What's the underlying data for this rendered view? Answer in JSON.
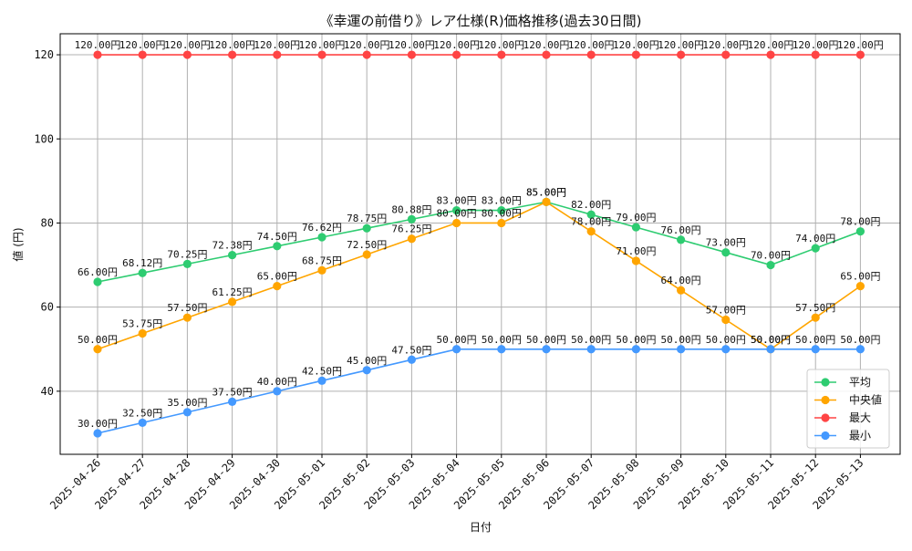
{
  "chart_data": {
    "type": "line",
    "title": "《幸運の前借り》レア仕様(R)価格推移(過去30日間)",
    "xlabel": "日付",
    "ylabel": "値 (円)",
    "ylim": [
      25,
      125
    ],
    "yticks": [
      40,
      60,
      80,
      100,
      120
    ],
    "grid": true,
    "legend_position": "lower-right",
    "categories": [
      "2025-04-26",
      "2025-04-27",
      "2025-04-28",
      "2025-04-29",
      "2025-04-30",
      "2025-05-01",
      "2025-05-02",
      "2025-05-03",
      "2025-05-04",
      "2025-05-05",
      "2025-05-06",
      "2025-05-07",
      "2025-05-08",
      "2025-05-09",
      "2025-05-10",
      "2025-05-11",
      "2025-05-12",
      "2025-05-13"
    ],
    "series": [
      {
        "name": "平均",
        "color": "#2ecc71",
        "values": [
          66.0,
          68.12,
          70.25,
          72.38,
          74.5,
          76.62,
          78.75,
          80.88,
          83.0,
          83.0,
          85.0,
          82.0,
          79.0,
          76.0,
          73.0,
          70.0,
          74.0,
          78.0
        ],
        "labels": [
          "66.00円",
          "68.12円",
          "70.25円",
          "72.38円",
          "74.50円",
          "76.62円",
          "78.75円",
          "80.88円",
          "83.00円",
          "83.00円",
          "85.00円",
          "82.00円",
          "79.00円",
          "76.00円",
          "73.00円",
          "70.00円",
          "74.00円",
          "78.00円"
        ]
      },
      {
        "name": "中央値",
        "color": "#ffa500",
        "values": [
          50.0,
          53.75,
          57.5,
          61.25,
          65.0,
          68.75,
          72.5,
          76.25,
          80.0,
          80.0,
          85.0,
          78.0,
          71.0,
          64.0,
          57.0,
          50.0,
          57.5,
          65.0
        ],
        "labels": [
          "50.00円",
          "53.75円",
          "57.50円",
          "61.25円",
          "65.00円",
          "68.75円",
          "72.50円",
          "76.25円",
          "80.00円",
          "80.00円",
          "85.00円",
          "78.00円",
          "71.00円",
          "64.00円",
          "57.00円",
          "50.00円",
          "57.50円",
          "65.00円"
        ]
      },
      {
        "name": "最大",
        "color": "#ff4444",
        "values": [
          120,
          120,
          120,
          120,
          120,
          120,
          120,
          120,
          120,
          120,
          120,
          120,
          120,
          120,
          120,
          120,
          120,
          120
        ],
        "labels": [
          "120.00円",
          "120.00円",
          "120.00円",
          "120.00円",
          "120.00円",
          "120.00円",
          "120.00円",
          "120.00円",
          "120.00円",
          "120.00円",
          "120.00円",
          "120.00円",
          "120.00円",
          "120.00円",
          "120.00円",
          "120.00円",
          "120.00円",
          "120.00円"
        ]
      },
      {
        "name": "最小",
        "color": "#4499ff",
        "values": [
          30.0,
          32.5,
          35.0,
          37.5,
          40.0,
          42.5,
          45.0,
          47.5,
          50.0,
          50.0,
          50.0,
          50.0,
          50.0,
          50.0,
          50.0,
          50.0,
          50.0,
          50.0
        ],
        "labels": [
          "30.00円",
          "32.50円",
          "35.00円",
          "37.50円",
          "40.00円",
          "42.50円",
          "45.00円",
          "47.50円",
          "50.00円",
          "50.00円",
          "50.00円",
          "50.00円",
          "50.00円",
          "50.00円",
          "50.00円",
          "50.00円",
          "50.00円",
          "50.00円"
        ]
      }
    ]
  }
}
